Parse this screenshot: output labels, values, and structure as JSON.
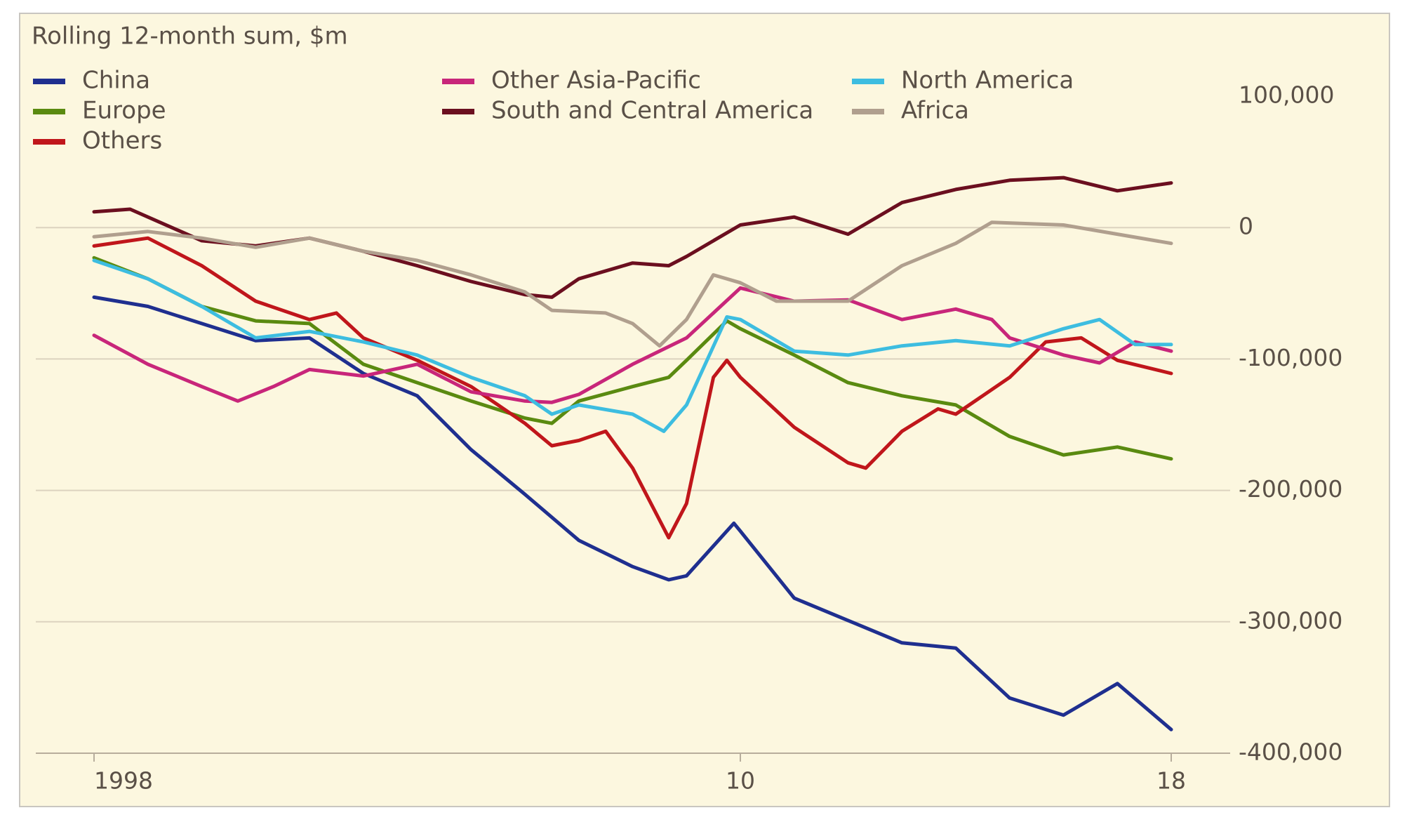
{
  "chart_data": {
    "type": "line",
    "title": "Rolling 12-month sum, $m",
    "ylim": [
      -400000,
      100000
    ],
    "yticks": [
      {
        "value": 100000,
        "label": "100,000"
      },
      0,
      {
        "value": -100000,
        "label": "-100,000"
      },
      {
        "value": -200000,
        "label": "-200,000"
      },
      {
        "value": -300000,
        "label": "-300,000"
      },
      {
        "value": -400000,
        "label": "-400,000"
      }
    ],
    "xlim": [
      1998,
      2018
    ],
    "xticks": [
      1998,
      {
        "value": 2010,
        "label": "10"
      },
      {
        "value": 2018,
        "label": "18"
      }
    ],
    "grid": true,
    "series": [
      {
        "name": "China",
        "color": "#1f2f8f",
        "x": [
          1998,
          1999,
          2000,
          2001,
          2002,
          2003,
          2004,
          2005,
          2006,
          2007,
          2008,
          2008.67,
          2009,
          2009.88,
          2010,
          2011,
          2012,
          2013,
          2014,
          2015,
          2016,
          2017,
          2018
        ],
        "values": [
          -53000,
          -60000,
          -73000,
          -86000,
          -84000,
          -111000,
          -128000,
          -169000,
          -203000,
          -238000,
          -258000,
          -268000,
          -265000,
          -225000,
          -231000,
          -282000,
          -299000,
          -316000,
          -320000,
          -358000,
          -371000,
          -347000,
          -382000
        ]
      },
      {
        "name": "Europe",
        "color": "#5a8a10",
        "x": [
          1998,
          1999,
          2000,
          2001,
          2002,
          2003,
          2004,
          2005,
          2006,
          2006.5,
          2007,
          2008,
          2008.67,
          2009,
          2009.75,
          2010,
          2011,
          2012,
          2013,
          2014,
          2015,
          2016,
          2017,
          2018
        ],
        "values": [
          -23000,
          -39000,
          -60000,
          -71000,
          -73000,
          -104000,
          -118000,
          -132000,
          -145000,
          -149000,
          -132000,
          -121000,
          -114000,
          -101000,
          -71000,
          -77000,
          -97000,
          -118000,
          -128000,
          -135000,
          -159000,
          -173000,
          -167000,
          -176000
        ]
      },
      {
        "name": "Others",
        "color": "#c0161b",
        "x": [
          1998,
          1999,
          2000,
          2001,
          2002,
          2002.5,
          2003,
          2004,
          2005,
          2006,
          2006.5,
          2007,
          2007.5,
          2008,
          2008.67,
          2009,
          2009.5,
          2009.75,
          2010,
          2011,
          2012,
          2012.33,
          2013,
          2013.67,
          2014,
          2015,
          2015.67,
          2016.33,
          2017,
          2018
        ],
        "values": [
          -14000,
          -8000,
          -29000,
          -56000,
          -70000,
          -65000,
          -84000,
          -101000,
          -121000,
          -149000,
          -166000,
          -162000,
          -155000,
          -183000,
          -236000,
          -210000,
          -114000,
          -101000,
          -114000,
          -152000,
          -179000,
          -183000,
          -155000,
          -138000,
          -142000,
          -114000,
          -87000,
          -84000,
          -101000,
          -111000
        ]
      },
      {
        "name": "Other Asia-Pacific",
        "color": "#c8267a",
        "x": [
          1998,
          1999,
          2000,
          2000.67,
          2001.33,
          2002,
          2003,
          2004,
          2005,
          2006,
          2006.5,
          2007,
          2008,
          2009,
          2010,
          2011,
          2012,
          2013,
          2014,
          2014.67,
          2015,
          2016,
          2016.67,
          2017.33,
          2018
        ],
        "values": [
          -82000,
          -104000,
          -121000,
          -132000,
          -121000,
          -108000,
          -113000,
          -104000,
          -125000,
          -132000,
          -133000,
          -127000,
          -104000,
          -84000,
          -46000,
          -56000,
          -55000,
          -70000,
          -62000,
          -70000,
          -84000,
          -97000,
          -103000,
          -87000,
          -94000
        ]
      },
      {
        "name": "South and Central America",
        "color": "#6b0f1f",
        "x": [
          1998,
          1998.67,
          2000,
          2001,
          2002,
          2003,
          2004,
          2005,
          2006,
          2006.5,
          2007,
          2008,
          2008.67,
          2009,
          2010,
          2011,
          2012,
          2013,
          2014,
          2015,
          2016,
          2017,
          2018
        ],
        "values": [
          12000,
          14000,
          -10000,
          -14000,
          -8000,
          -18000,
          -29000,
          -41000,
          -51000,
          -53000,
          -39000,
          -27000,
          -29000,
          -22000,
          2000,
          8000,
          -5000,
          19000,
          29000,
          36000,
          38000,
          28000,
          34000
        ]
      },
      {
        "name": "North America",
        "color": "#3dbde0",
        "x": [
          1998,
          1999,
          2000,
          2001,
          2002,
          2003,
          2004,
          2005,
          2006,
          2006.5,
          2007,
          2008,
          2008.58,
          2009,
          2009.75,
          2010,
          2011,
          2012,
          2013,
          2014,
          2015,
          2016,
          2016.67,
          2017.33,
          2018
        ],
        "values": [
          -25000,
          -39000,
          -60000,
          -84000,
          -79000,
          -87000,
          -97000,
          -114000,
          -128000,
          -142000,
          -135000,
          -142000,
          -155000,
          -135000,
          -68000,
          -70000,
          -94000,
          -97000,
          -90000,
          -86000,
          -90000,
          -77000,
          -70000,
          -89000,
          -89000
        ]
      },
      {
        "name": "Africa",
        "color": "#b09f8e",
        "x": [
          1998,
          1999,
          2000,
          2001,
          2002,
          2003,
          2004,
          2005,
          2006,
          2006.5,
          2007.5,
          2008,
          2008.5,
          2009,
          2009.5,
          2010,
          2010.67,
          2012,
          2013,
          2014,
          2014.67,
          2016,
          2017,
          2018
        ],
        "values": [
          -7000,
          -3000,
          -8000,
          -15000,
          -8000,
          -18000,
          -25000,
          -36000,
          -49000,
          -63000,
          -65000,
          -73000,
          -90000,
          -70000,
          -36000,
          -42000,
          -56000,
          -56000,
          -29000,
          -12000,
          4000,
          2000,
          -5000,
          -12000
        ]
      }
    ]
  }
}
